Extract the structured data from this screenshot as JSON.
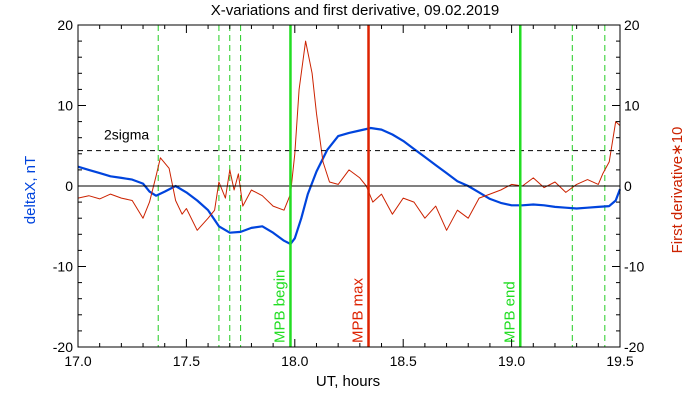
{
  "chart_data": {
    "type": "line",
    "title": "X-variations and first derivative, 09.02.2019",
    "xlabel": "UT, hours",
    "ylabel_left": "deltaX, nT",
    "ylabel_right": "First derivative∗10",
    "xlim": [
      17.0,
      19.5
    ],
    "ylim": [
      -20,
      20
    ],
    "x_ticks": [
      "17.0",
      "17.5",
      "18.0",
      "18.5",
      "19.0",
      "19.5"
    ],
    "y_ticks_left": [
      "20",
      "10",
      "0",
      "-10",
      "-20"
    ],
    "y_ticks_right": [
      "20",
      "10",
      "0",
      "-10",
      "-20"
    ],
    "grid": false,
    "threshold": {
      "label": "2sigma",
      "value": 4.4
    },
    "series": [
      {
        "color": "#0044dd",
        "x": [
          17.0,
          17.05,
          17.1,
          17.15,
          17.2,
          17.25,
          17.3,
          17.33,
          17.36,
          17.4,
          17.45,
          17.5,
          17.55,
          17.6,
          17.65,
          17.7,
          17.75,
          17.8,
          17.85,
          17.9,
          17.95,
          17.98,
          18.0,
          18.03,
          18.06,
          18.1,
          18.15,
          18.2,
          18.25,
          18.3,
          18.35,
          18.4,
          18.45,
          18.5,
          18.55,
          18.6,
          18.65,
          18.7,
          18.75,
          18.8,
          18.85,
          18.9,
          18.95,
          19.0,
          19.05,
          19.1,
          19.15,
          19.2,
          19.25,
          19.3,
          19.35,
          19.4,
          19.45,
          19.48,
          19.5
        ],
        "y": [
          2.4,
          2.0,
          1.6,
          1.2,
          1.0,
          0.8,
          0.3,
          -0.7,
          -1.2,
          -0.7,
          0.0,
          -0.8,
          -1.8,
          -3.0,
          -5.0,
          -5.8,
          -5.7,
          -5.2,
          -5.0,
          -5.8,
          -6.8,
          -7.2,
          -6.5,
          -4.0,
          -1.0,
          1.8,
          4.5,
          6.2,
          6.6,
          6.9,
          7.2,
          7.0,
          6.4,
          5.6,
          4.6,
          3.6,
          2.6,
          1.6,
          0.6,
          0.0,
          -0.8,
          -1.6,
          -2.1,
          -2.4,
          -2.4,
          -2.3,
          -2.4,
          -2.6,
          -2.7,
          -2.8,
          -2.7,
          -2.6,
          -2.5,
          -1.8,
          -0.4
        ]
      },
      {
        "color": "#cc2200",
        "x": [
          17.0,
          17.05,
          17.1,
          17.15,
          17.2,
          17.25,
          17.3,
          17.33,
          17.36,
          17.38,
          17.42,
          17.45,
          17.48,
          17.5,
          17.55,
          17.6,
          17.63,
          17.65,
          17.68,
          17.7,
          17.72,
          17.74,
          17.76,
          17.8,
          17.85,
          17.9,
          17.95,
          17.98,
          18.0,
          18.02,
          18.05,
          18.08,
          18.1,
          18.13,
          18.16,
          18.2,
          18.25,
          18.3,
          18.33,
          18.36,
          18.4,
          18.45,
          18.5,
          18.55,
          18.6,
          18.65,
          18.7,
          18.75,
          18.8,
          18.85,
          18.9,
          18.95,
          19.0,
          19.05,
          19.1,
          19.15,
          19.2,
          19.25,
          19.3,
          19.35,
          19.4,
          19.42,
          19.45,
          19.48,
          19.5
        ],
        "y": [
          -1.5,
          -1.2,
          -1.6,
          -1.0,
          -1.5,
          -1.8,
          -4.0,
          -2.0,
          1.2,
          3.5,
          2.2,
          -1.8,
          -3.5,
          -2.8,
          -5.5,
          -4.0,
          -3.0,
          0.5,
          -1.5,
          2.0,
          -0.5,
          1.5,
          -2.5,
          -0.5,
          -1.2,
          -2.5,
          -3.0,
          -1.0,
          4.0,
          12.0,
          18.0,
          14.0,
          9.0,
          3.0,
          0.5,
          0.2,
          2.0,
          1.0,
          0.0,
          -2.0,
          -1.0,
          -3.5,
          -1.5,
          -2.0,
          -4.0,
          -2.5,
          -5.5,
          -3.0,
          -4.0,
          -1.5,
          -1.0,
          -0.5,
          0.2,
          0.0,
          1.0,
          -0.2,
          0.5,
          -0.8,
          0.2,
          0.8,
          0.2,
          1.5,
          3.0,
          8.0,
          7.5
        ]
      }
    ],
    "events": [
      {
        "label": "MPB begin",
        "x": 17.98,
        "color": "#22dd22"
      },
      {
        "label": "MPB max",
        "x": 18.34,
        "color": "#dd2200"
      },
      {
        "label": "MPB end",
        "x": 19.04,
        "color": "#22dd22"
      }
    ],
    "markers_dashed": {
      "color": "#22cc22",
      "x": [
        17.37,
        17.65,
        17.7,
        17.75,
        19.28,
        19.43
      ]
    }
  }
}
